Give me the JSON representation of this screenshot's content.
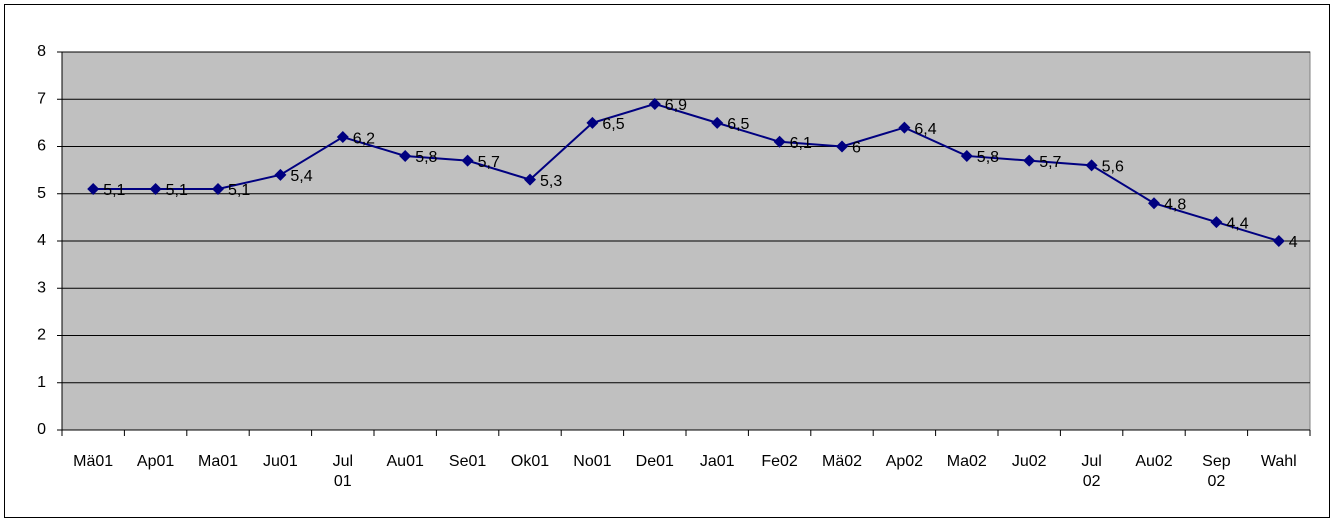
{
  "chart_data": {
    "type": "line",
    "categories": [
      "Mä01",
      "Ap01",
      "Ma01",
      "Ju01",
      "Jul\n01",
      "Au01",
      "Se01",
      "Ok01",
      "No01",
      "De01",
      "Ja01",
      "Fe02",
      "Mä02",
      "Ap02",
      "Ma02",
      "Ju02",
      "Jul\n02",
      "Au02",
      "Sep\n02",
      "Wahl"
    ],
    "series": [
      {
        "color": "#000080",
        "values": [
          5.1,
          5.1,
          5.1,
          5.4,
          6.2,
          5.8,
          5.7,
          5.3,
          6.5,
          6.9,
          6.5,
          6.1,
          6,
          6.4,
          5.8,
          5.7,
          5.6,
          4.8,
          4.4,
          4
        ],
        "value_labels": [
          "5,1",
          "5,1",
          "5,1",
          "5,4",
          "6,2",
          "5,8",
          "5,7",
          "5,3",
          "6,5",
          "6,9",
          "6,5",
          "6,1",
          "6",
          "6,4",
          "5,8",
          "5,7",
          "5,6",
          "4,8",
          "4,4",
          "4"
        ]
      }
    ],
    "ylim": [
      0,
      8
    ],
    "yticks": [
      0,
      1,
      2,
      3,
      4,
      5,
      6,
      7,
      8
    ],
    "grid": true,
    "plot_background": "#c0c0c0"
  }
}
